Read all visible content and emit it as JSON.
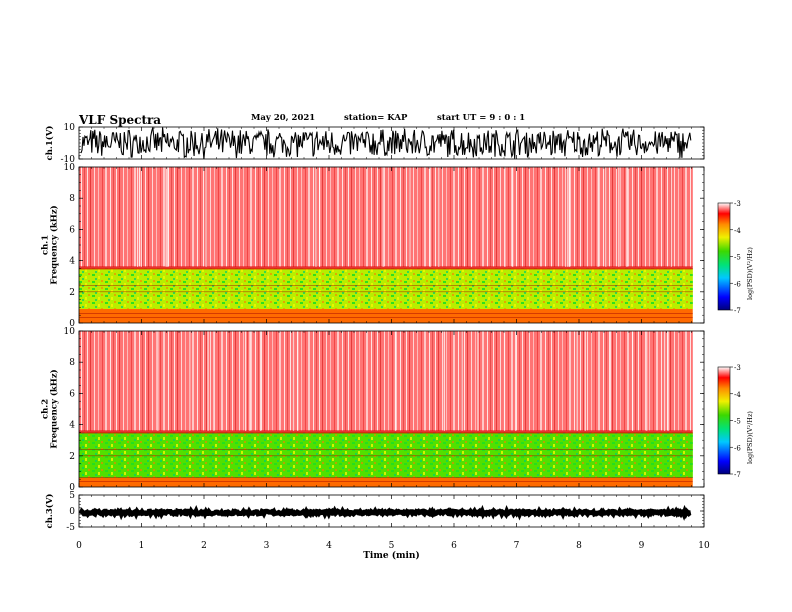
{
  "header": {
    "title": "VLF Spectra",
    "date": "May 20, 2021",
    "station": "station= KAP",
    "start_ut": "start UT =  9 : 0 : 1"
  },
  "chart_data": [
    {
      "type": "line",
      "panel": "ch1-waveform",
      "ylabel": "ch.1(V)",
      "ylim": [
        -10,
        10
      ],
      "yticks": [
        "10",
        "-10"
      ],
      "xlim": [
        0,
        10
      ],
      "data_extent_min": 9.82,
      "typical_amplitude_range": [
        -8,
        8
      ],
      "color": "#000000"
    },
    {
      "type": "heatmap",
      "panel": "ch1-spectrogram",
      "ylabel": "ch.1\nFrequency  (kHz)",
      "ylim": [
        0,
        10
      ],
      "yticks": [
        "0",
        "2",
        "4",
        "6",
        "8",
        "10"
      ],
      "xlim": [
        0,
        10
      ],
      "data_extent_min": 9.82,
      "colorbar": {
        "label": "log(PSD)(V²/Hz)",
        "range": [
          -7,
          -3
        ],
        "ticks": [
          "-3",
          "-4",
          "-5",
          "-6",
          "-7"
        ]
      },
      "dominant_bands": [
        {
          "freq_khz": [
            3.6,
            10.0
          ],
          "log_psd": -3.5,
          "color": "red"
        },
        {
          "freq_khz": [
            0.9,
            3.5
          ],
          "log_psd": -4.6,
          "color": "yellow-green"
        },
        {
          "freq_khz": [
            0.0,
            0.9
          ],
          "log_psd": -4.0,
          "color": "orange"
        }
      ]
    },
    {
      "type": "heatmap",
      "panel": "ch2-spectrogram",
      "ylabel": "ch.2\nFrequency  (kHz)",
      "ylim": [
        0,
        10
      ],
      "yticks": [
        "0",
        "2",
        "4",
        "6",
        "8",
        "10"
      ],
      "xlim": [
        0,
        10
      ],
      "data_extent_min": 9.82,
      "colorbar": {
        "label": "log(PSD)(V²/Hz)",
        "range": [
          -7,
          -3
        ],
        "ticks": [
          "-3",
          "-4",
          "-5",
          "-6",
          "-7"
        ]
      },
      "dominant_bands": [
        {
          "freq_khz": [
            3.6,
            10.0
          ],
          "log_psd": -3.5,
          "color": "red"
        },
        {
          "freq_khz": [
            0.6,
            3.5
          ],
          "log_psd": -4.9,
          "color": "green"
        },
        {
          "freq_khz": [
            0.0,
            0.6
          ],
          "log_psd": -4.0,
          "color": "orange"
        }
      ]
    },
    {
      "type": "line",
      "panel": "ch3-waveform",
      "ylabel": "ch.3(V)",
      "ylim": [
        -5,
        5
      ],
      "yticks": [
        "5",
        "0",
        "-5"
      ],
      "xlim": [
        0,
        10
      ],
      "data_extent_min": 9.82,
      "typical_amplitude_range": [
        -0.5,
        0.5
      ],
      "color": "#000000",
      "xlabel": "Time  (min)",
      "xticks": [
        "0",
        "1",
        "2",
        "3",
        "4",
        "5",
        "6",
        "7",
        "8",
        "9",
        "10"
      ]
    }
  ]
}
